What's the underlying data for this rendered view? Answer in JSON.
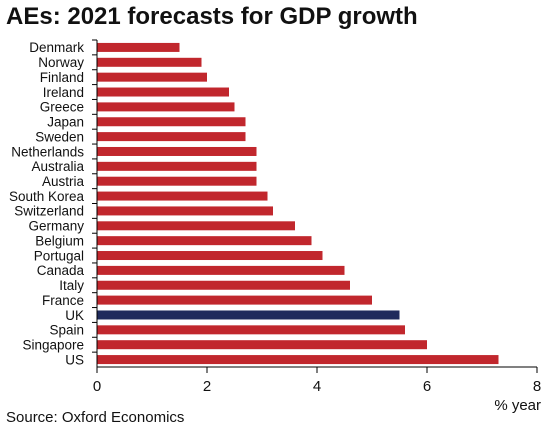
{
  "title": "AEs: 2021 forecasts for GDP growth",
  "source": "Source: Oxford Economics",
  "colors": {
    "bar": "#c1272d",
    "highlight": "#1f2a5c",
    "axis": "#000000"
  },
  "chart_data": {
    "type": "bar",
    "orientation": "horizontal",
    "title": "AEs: 2021 forecasts for GDP growth",
    "xlabel": "% year",
    "ylabel": "",
    "xlim": [
      0,
      8
    ],
    "xticks": [
      0,
      2,
      4,
      6,
      8
    ],
    "grid": false,
    "highlight_category": "UK",
    "categories": [
      "Denmark",
      "Norway",
      "Finland",
      "Ireland",
      "Greece",
      "Japan",
      "Sweden",
      "Netherlands",
      "Australia",
      "Austria",
      "South Korea",
      "Switzerland",
      "Germany",
      "Belgium",
      "Portugal",
      "Canada",
      "Italy",
      "France",
      "UK",
      "Spain",
      "Singapore",
      "US"
    ],
    "values": [
      1.5,
      1.9,
      2.0,
      2.4,
      2.5,
      2.7,
      2.7,
      2.9,
      2.9,
      2.9,
      3.1,
      3.2,
      3.6,
      3.9,
      4.1,
      4.5,
      4.6,
      5.0,
      5.5,
      5.6,
      6.0,
      7.3
    ]
  }
}
